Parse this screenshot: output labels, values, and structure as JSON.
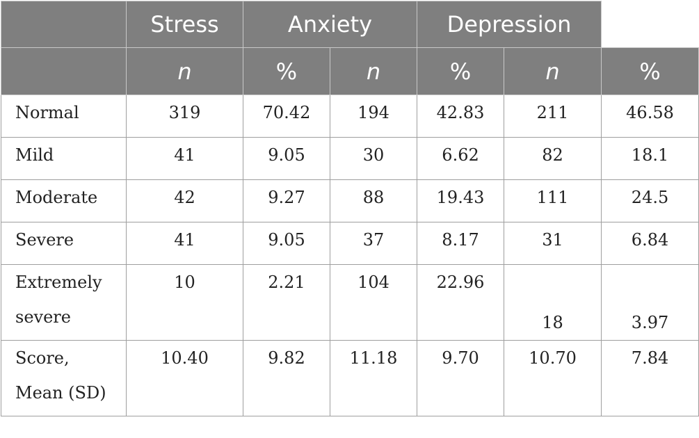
{
  "table": {
    "groups": [
      "Stress",
      "Anxiety",
      "Depression"
    ],
    "subheaders": [
      "n",
      "%",
      "n",
      "%",
      "n",
      "%"
    ],
    "rows": [
      {
        "label": [
          "Normal"
        ],
        "cells": [
          "319",
          "70.42",
          "194",
          "42.83",
          "211",
          "46.58"
        ]
      },
      {
        "label": [
          "Mild"
        ],
        "cells": [
          "41",
          "9.05",
          "30",
          "6.62",
          "82",
          "18.1"
        ]
      },
      {
        "label": [
          "Moderate"
        ],
        "cells": [
          "42",
          "9.27",
          "88",
          "19.43",
          "111",
          "24.5"
        ]
      },
      {
        "label": [
          "Severe"
        ],
        "cells": [
          "41",
          "9.05",
          "37",
          "8.17",
          "31",
          "6.84"
        ]
      },
      {
        "label": [
          "Extremely",
          "severe"
        ],
        "cells": [
          "10",
          "2.21",
          "104",
          "22.96",
          "18",
          "3.97"
        ]
      },
      {
        "label": [
          "Score,",
          "Mean (SD)"
        ],
        "cells": [
          "10.40",
          "9.82",
          "11.18",
          "9.70",
          "10.70",
          "7.84"
        ]
      }
    ]
  }
}
